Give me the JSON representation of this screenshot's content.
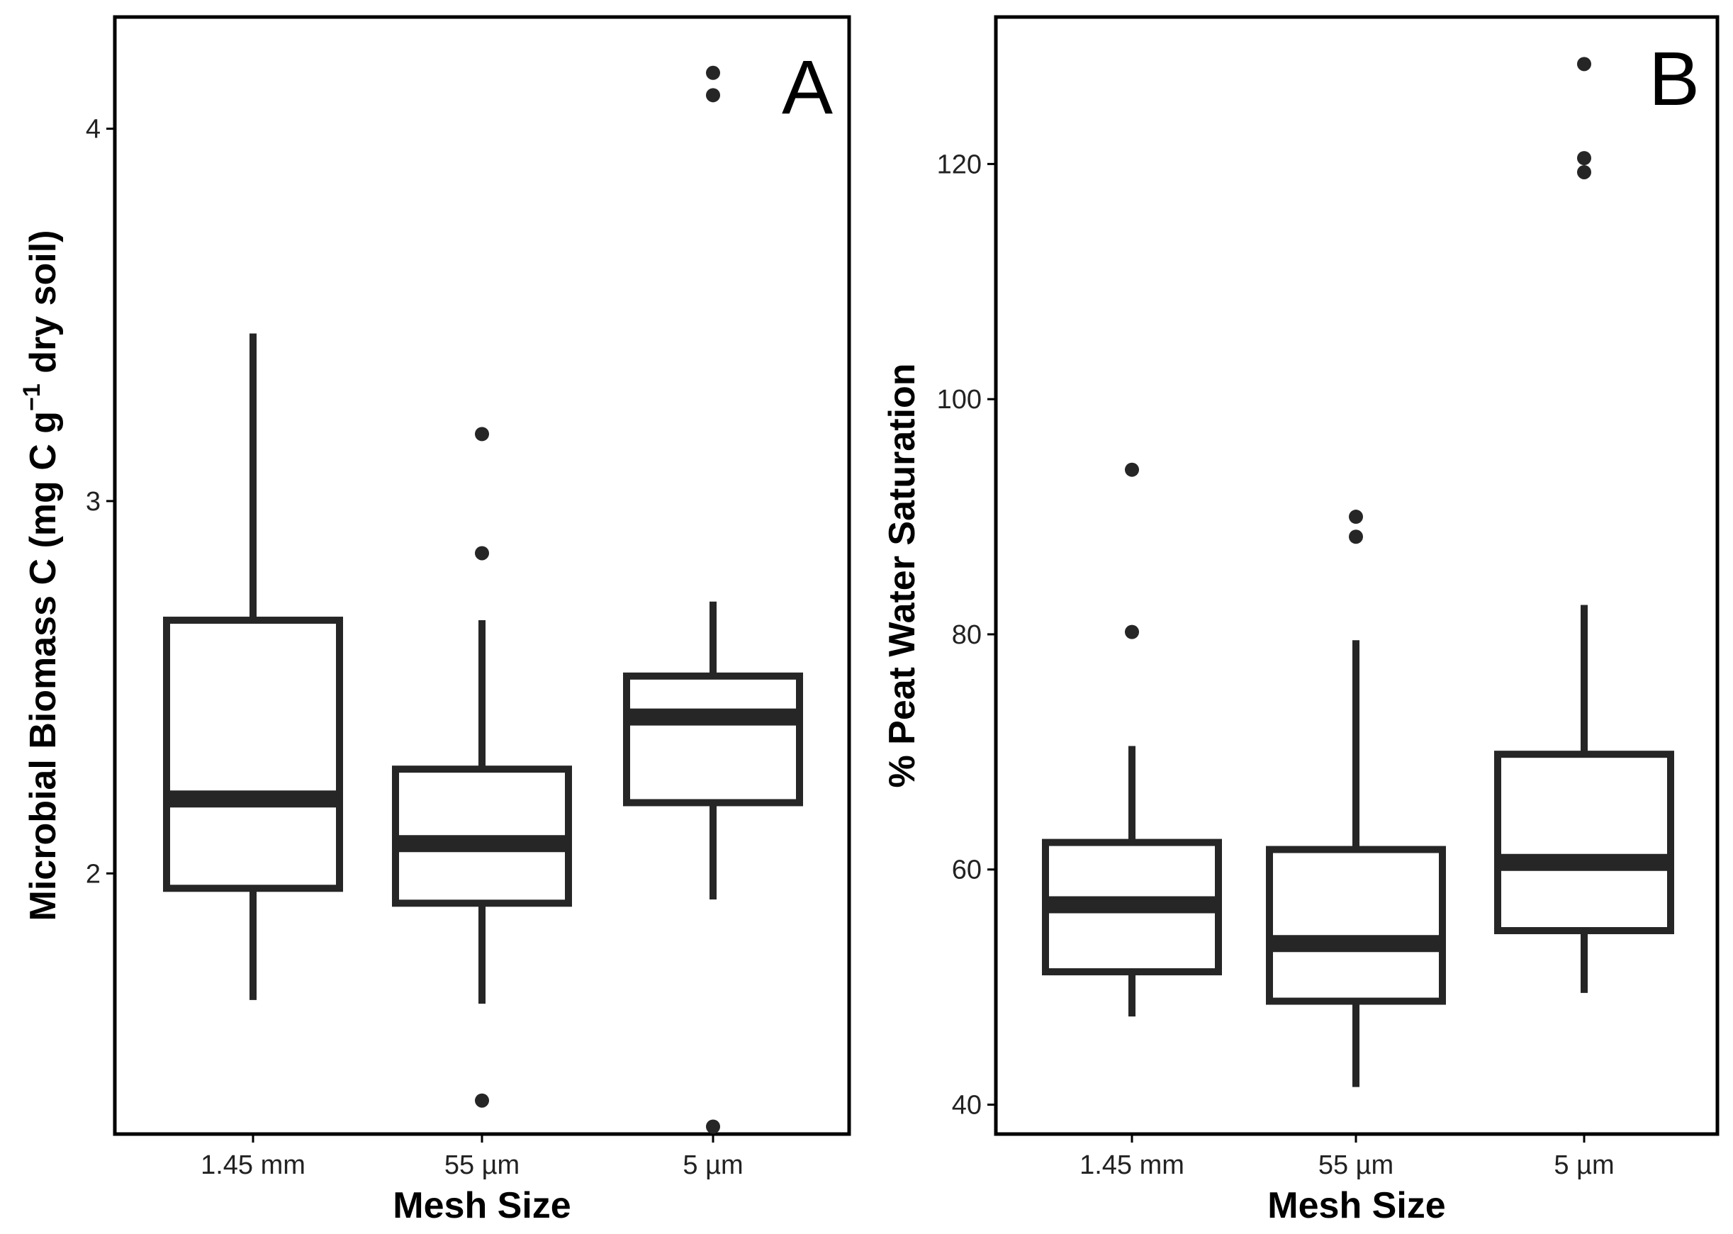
{
  "chart_data": [
    {
      "type": "box",
      "panel_label": "A",
      "xlabel": "Mesh Size",
      "ylabel": {
        "main": "Microbial Biomass C (mg C g",
        "superscript": "−1",
        "tail": " dry soil)"
      },
      "categories": [
        "1.45 mm",
        "55 µm",
        "5 µm"
      ],
      "ylim": [
        1.3,
        4.3
      ],
      "yticks": [
        2,
        3,
        4
      ],
      "grid": false,
      "boxes": [
        {
          "category": "1.45 mm",
          "whisker_low": 1.66,
          "q1": 1.96,
          "median": 2.2,
          "q3": 2.68,
          "whisker_high": 3.45,
          "outliers": []
        },
        {
          "category": "55 µm",
          "whisker_low": 1.65,
          "q1": 1.92,
          "median": 2.08,
          "q3": 2.28,
          "whisker_high": 2.68,
          "outliers": [
            3.18,
            2.86,
            1.39
          ]
        },
        {
          "category": "5 µm",
          "whisker_low": 1.93,
          "q1": 2.19,
          "median": 2.42,
          "q3": 2.53,
          "whisker_high": 2.73,
          "outliers": [
            4.15,
            4.09,
            1.32
          ]
        }
      ]
    },
    {
      "type": "box",
      "panel_label": "B",
      "xlabel": "Mesh Size",
      "ylabel": {
        "main": "% Peat Water Saturation",
        "superscript": "",
        "tail": ""
      },
      "categories": [
        "1.45 mm",
        "55 µm",
        "5 µm"
      ],
      "ylim": [
        37.5,
        132.5
      ],
      "yticks": [
        40,
        60,
        80,
        100,
        120
      ],
      "grid": false,
      "boxes": [
        {
          "category": "1.45 mm",
          "whisker_low": 47.5,
          "q1": 51.3,
          "median": 57.0,
          "q3": 62.3,
          "whisker_high": 70.5,
          "outliers": [
            94.0,
            80.2
          ]
        },
        {
          "category": "55 µm",
          "whisker_low": 41.5,
          "q1": 48.8,
          "median": 53.7,
          "q3": 61.7,
          "whisker_high": 79.5,
          "outliers": [
            90.0,
            88.3
          ]
        },
        {
          "category": "5 µm",
          "whisker_low": 49.5,
          "q1": 54.8,
          "median": 60.6,
          "q3": 69.8,
          "whisker_high": 82.5,
          "outliers": [
            128.5,
            120.5,
            119.3
          ]
        }
      ]
    }
  ]
}
